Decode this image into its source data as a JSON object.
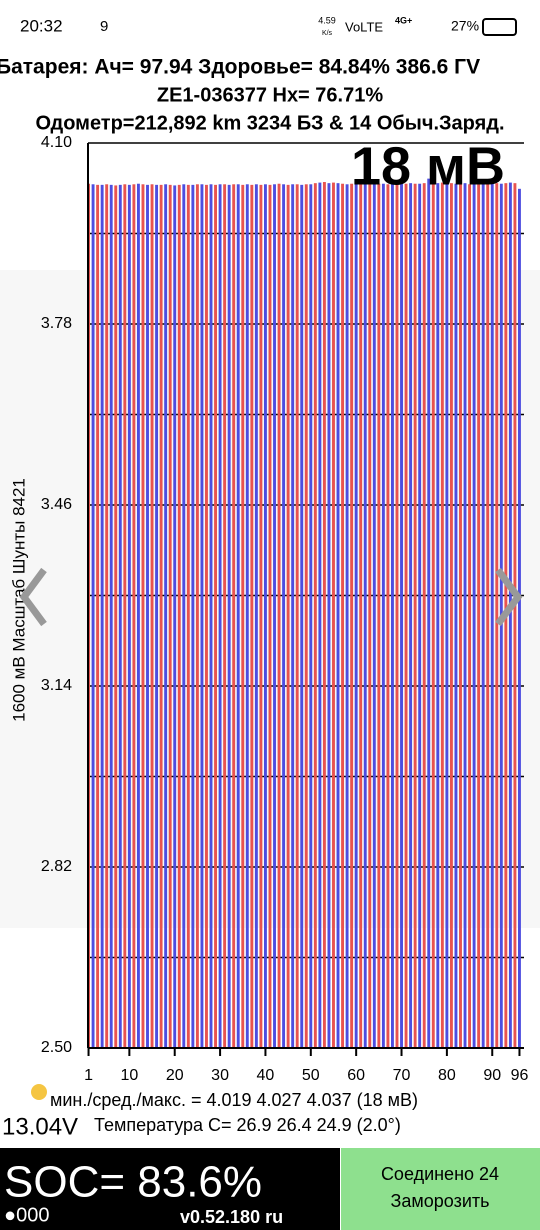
{
  "status_bar": {
    "time": "20:32",
    "notification": "9",
    "speed": "4.59",
    "speed_unit": "K/s",
    "network": "VoLTE",
    "signal": "4G+",
    "battery": "27%"
  },
  "header": {
    "line1": "Батарея: Ач= 97.94 Здоровье= 84.84% 386.6 ГV",
    "line2": "ZE1-036377    Hx= 76.71%",
    "line3": "Одометр=212,892 km 3234 БЗ & 14 Обыч.Заряд."
  },
  "chart_data": {
    "type": "bar",
    "annotation": "18 мВ",
    "ylabel": "1600 мВ Масштаб   Шунты 8421",
    "x": [
      1,
      2,
      3,
      4,
      5,
      6,
      7,
      8,
      9,
      10,
      11,
      12,
      13,
      14,
      15,
      16,
      17,
      18,
      19,
      20,
      21,
      22,
      23,
      24,
      25,
      26,
      27,
      28,
      29,
      30,
      31,
      32,
      33,
      34,
      35,
      36,
      37,
      38,
      39,
      40,
      41,
      42,
      43,
      44,
      45,
      46,
      47,
      48,
      49,
      50,
      51,
      52,
      53,
      54,
      55,
      56,
      57,
      58,
      59,
      60,
      61,
      62,
      63,
      64,
      65,
      66,
      67,
      68,
      69,
      70,
      71,
      72,
      73,
      74,
      75,
      76,
      77,
      78,
      79,
      80,
      81,
      82,
      83,
      84,
      85,
      86,
      87,
      88,
      89,
      90,
      91,
      92,
      93,
      94,
      95,
      96
    ],
    "values": [
      4.028,
      4.027,
      4.026,
      4.026,
      4.027,
      4.026,
      4.025,
      4.026,
      4.027,
      4.026,
      4.027,
      4.028,
      4.027,
      4.026,
      4.027,
      4.026,
      4.026,
      4.027,
      4.026,
      4.025,
      4.026,
      4.027,
      4.026,
      4.026,
      4.027,
      4.027,
      4.026,
      4.027,
      4.026,
      4.027,
      4.027,
      4.026,
      4.027,
      4.027,
      4.026,
      4.027,
      4.026,
      4.027,
      4.026,
      4.027,
      4.026,
      4.027,
      4.028,
      4.027,
      4.026,
      4.027,
      4.027,
      4.026,
      4.027,
      4.027,
      4.029,
      4.03,
      4.031,
      4.029,
      4.03,
      4.029,
      4.028,
      4.027,
      4.028,
      4.028,
      4.029,
      4.028,
      4.027,
      4.029,
      4.028,
      4.028,
      4.027,
      4.029,
      4.028,
      4.03,
      4.028,
      4.029,
      4.028,
      4.028,
      4.029,
      4.037,
      4.028,
      4.029,
      4.03,
      4.028,
      4.029,
      4.028,
      4.03,
      4.029,
      4.027,
      4.03,
      4.028,
      4.029,
      4.03,
      4.028,
      4.029,
      4.028,
      4.029,
      4.03,
      4.029,
      4.019
    ],
    "colors": [
      "#e8534f",
      "#4d4de0"
    ],
    "xlim": [
      0,
      97
    ],
    "xticks": [
      1,
      10,
      20,
      30,
      40,
      50,
      60,
      70,
      80,
      90,
      96
    ],
    "ylim": [
      2.5,
      4.1
    ],
    "yticks": [
      {
        "value": 2.5,
        "label": "2.50"
      },
      2.82,
      3.14,
      3.46,
      3.78,
      {
        "value": 4.1,
        "label": "4.10"
      }
    ],
    "minor_yticks": [
      2.66,
      2.98,
      3.3,
      3.62,
      3.94
    ],
    "grid": true
  },
  "stats": {
    "minmax": "мин./сред./макс. = 4.019 4.027 4.037  (18 мВ)",
    "voltage": "13.04V",
    "temperature": "Температура С= 26.9  26.4  24.9  (2.0°)"
  },
  "footer": {
    "soc": "SOC= 83.6%",
    "dots": "●000",
    "version": "v0.52.180 ru",
    "connected": "Соединено 24",
    "freeze": "Заморозить"
  }
}
